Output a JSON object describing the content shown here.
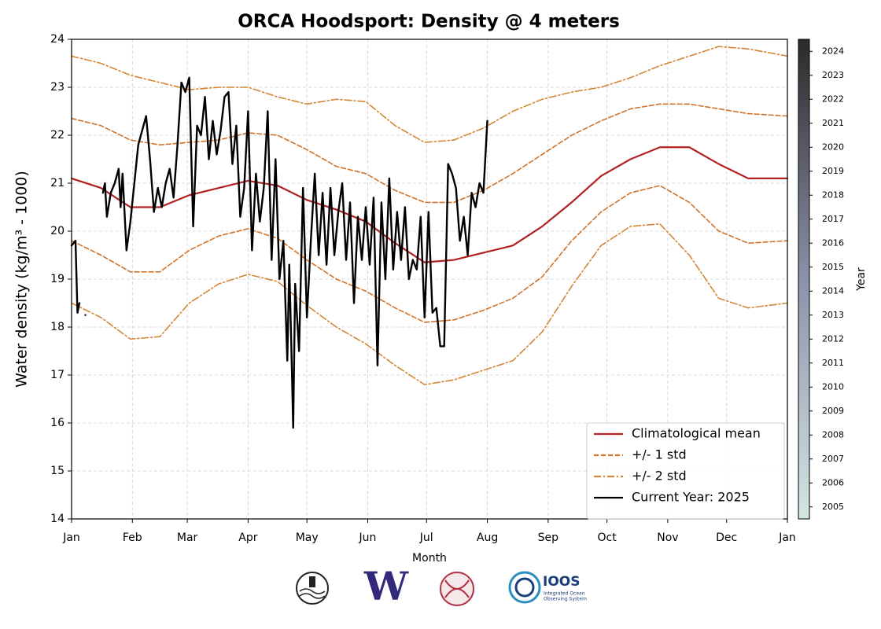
{
  "chart_data": {
    "type": "line",
    "title": "ORCA Hoodsport: Density @ 4 meters",
    "xlabel": "Month",
    "ylabel": "Water density (kg/m³ - 1000)",
    "xlim": [
      0,
      365
    ],
    "xticks": [
      {
        "value": 0,
        "label": "Jan"
      },
      {
        "value": 31,
        "label": "Feb"
      },
      {
        "value": 59,
        "label": "Mar"
      },
      {
        "value": 90,
        "label": "Apr"
      },
      {
        "value": 120,
        "label": "May"
      },
      {
        "value": 151,
        "label": "Jun"
      },
      {
        "value": 181,
        "label": "Jul"
      },
      {
        "value": 212,
        "label": "Aug"
      },
      {
        "value": 243,
        "label": "Sep"
      },
      {
        "value": 273,
        "label": "Oct"
      },
      {
        "value": 304,
        "label": "Nov"
      },
      {
        "value": 334,
        "label": "Dec"
      },
      {
        "value": 365,
        "label": "Jan"
      }
    ],
    "ylim": [
      14,
      24
    ],
    "yticks": [
      14,
      15,
      16,
      17,
      18,
      19,
      20,
      21,
      22,
      23,
      24
    ],
    "grid": true,
    "legend": "lower right",
    "x": [
      0,
      15,
      30,
      45,
      60,
      75,
      90,
      105,
      120,
      135,
      150,
      165,
      180,
      195,
      210,
      225,
      240,
      255,
      270,
      285,
      300,
      315,
      330,
      345,
      365
    ],
    "series": [
      {
        "name": "Climatological mean",
        "color": "#b22222",
        "style": "solid",
        "values": [
          21.1,
          20.9,
          20.5,
          20.5,
          20.75,
          20.9,
          21.05,
          20.95,
          20.65,
          20.45,
          20.2,
          19.75,
          19.35,
          19.4,
          19.55,
          19.7,
          20.1,
          20.6,
          21.15,
          21.5,
          21.75,
          21.75,
          21.4,
          21.1,
          21.1
        ]
      },
      {
        "name": "+/- 1 std",
        "color": "#d2732b",
        "style": "dashed",
        "upper": [
          22.35,
          22.2,
          21.9,
          21.8,
          21.85,
          21.9,
          22.05,
          22.0,
          21.7,
          21.35,
          21.2,
          20.85,
          20.6,
          20.6,
          20.85,
          21.2,
          21.6,
          22.0,
          22.3,
          22.55,
          22.65,
          22.65,
          22.55,
          22.45,
          22.4
        ],
        "lower": [
          19.8,
          19.5,
          19.15,
          19.15,
          19.6,
          19.9,
          20.05,
          19.85,
          19.4,
          19.0,
          18.75,
          18.4,
          18.1,
          18.15,
          18.35,
          18.6,
          19.05,
          19.8,
          20.4,
          20.8,
          20.95,
          20.6,
          20.0,
          19.75,
          19.8
        ]
      },
      {
        "name": "+/- 2 std",
        "color": "#d48535",
        "style": "dashdot",
        "upper": [
          23.65,
          23.5,
          23.25,
          23.1,
          22.95,
          23.0,
          23.0,
          22.8,
          22.65,
          22.75,
          22.7,
          22.2,
          21.85,
          21.9,
          22.15,
          22.5,
          22.75,
          22.9,
          23.0,
          23.2,
          23.45,
          23.65,
          23.85,
          23.8,
          23.65
        ],
        "lower": [
          18.5,
          18.2,
          17.75,
          17.8,
          18.5,
          18.9,
          19.1,
          18.95,
          18.45,
          18.0,
          17.65,
          17.2,
          16.8,
          16.9,
          17.1,
          17.3,
          17.9,
          18.85,
          19.7,
          20.1,
          20.15,
          19.5,
          18.6,
          18.4,
          18.5
        ]
      },
      {
        "name": "Current Year: 2025",
        "color": "#000000",
        "style": "solid",
        "x": [
          0,
          2,
          3,
          4,
          5,
          7,
          10,
          16,
          17,
          18,
          20,
          22,
          24,
          25,
          26,
          28,
          30,
          32,
          34,
          36,
          38,
          40,
          42,
          44,
          46,
          48,
          50,
          52,
          54,
          56,
          58,
          60,
          62,
          64,
          66,
          68,
          70,
          72,
          74,
          76,
          78,
          80,
          82,
          84,
          86,
          88,
          90,
          92,
          94,
          96,
          98,
          100,
          102,
          104,
          106,
          108,
          110,
          111,
          112,
          113,
          114,
          116,
          118,
          120,
          122,
          124,
          126,
          128,
          130,
          132,
          134,
          136,
          138,
          140,
          142,
          144,
          146,
          148,
          150,
          152,
          154,
          156,
          158,
          160,
          162,
          164,
          166,
          168,
          170,
          172,
          174,
          176,
          178,
          180,
          182,
          184,
          186,
          188,
          190,
          192,
          194,
          196,
          198,
          200,
          202,
          204,
          206,
          208,
          210,
          212
        ],
        "values": [
          19.7,
          19.8,
          18.3,
          18.5,
          null,
          18.25,
          null,
          20.8,
          21.0,
          20.3,
          20.8,
          21.0,
          21.3,
          20.5,
          21.2,
          19.6,
          20.2,
          21.0,
          21.8,
          22.1,
          22.4,
          21.5,
          20.4,
          20.9,
          20.5,
          21.0,
          21.3,
          20.7,
          21.8,
          23.1,
          22.9,
          23.2,
          20.1,
          22.2,
          22.0,
          22.8,
          21.5,
          22.3,
          21.6,
          22.1,
          22.8,
          22.9,
          21.4,
          22.2,
          20.3,
          20.9,
          22.5,
          19.6,
          21.2,
          20.2,
          20.9,
          22.5,
          19.4,
          21.5,
          19.0,
          19.8,
          17.3,
          19.3,
          17.7,
          15.9,
          18.9,
          17.5,
          20.9,
          18.2,
          19.8,
          21.2,
          19.5,
          20.8,
          19.3,
          20.9,
          19.5,
          20.4,
          21.0,
          19.4,
          20.6,
          18.5,
          20.3,
          19.4,
          20.5,
          19.3,
          20.7,
          17.2,
          20.6,
          19.0,
          21.1,
          19.2,
          20.4,
          19.4,
          20.5,
          19.0,
          19.4,
          19.2,
          20.3,
          18.2,
          20.4,
          18.3,
          18.4,
          17.6,
          17.6,
          21.4,
          21.2,
          20.9,
          19.8,
          20.3,
          19.5,
          20.8,
          20.5,
          21.0,
          20.8,
          22.3
        ]
      }
    ],
    "colorbar": {
      "label": "Year",
      "lim": [
        2004.5,
        2024.5
      ],
      "colors": [
        "#d3e6e3",
        "#8c91aa",
        "#2a2a2a"
      ],
      "ticks": [
        2005,
        2006,
        2007,
        2008,
        2009,
        2010,
        2011,
        2012,
        2013,
        2014,
        2015,
        2016,
        2017,
        2018,
        2019,
        2020,
        2021,
        2022,
        2023,
        2024
      ]
    }
  },
  "logos": {
    "uw": "W",
    "ioos": "IOOS",
    "ioos_sub1": "Integrated Ocean",
    "ioos_sub2": "Observing System"
  }
}
